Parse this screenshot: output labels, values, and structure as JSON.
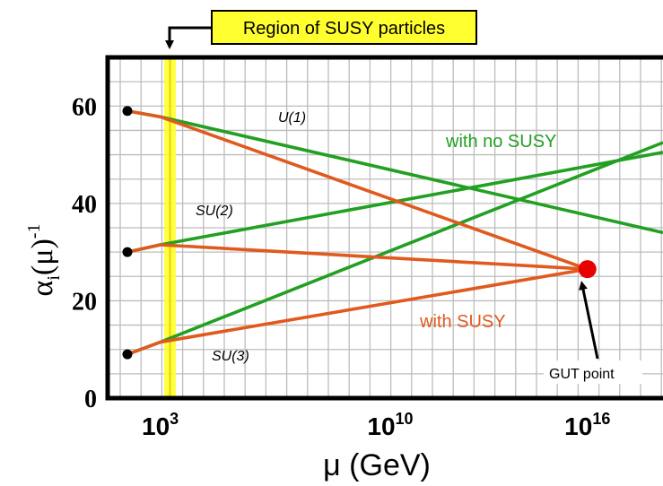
{
  "chart_data": {
    "type": "line",
    "title": "",
    "xlabel": "μ (GeV)",
    "ylabel_main": "α",
    "ylabel_sub": "i",
    "ylabel_rest": "(μ)",
    "ylabel_sup": "-1",
    "x_scale": "log10",
    "xlim_log10": [
      1.4,
      18.3
    ],
    "ylim": [
      0,
      70
    ],
    "grid": true,
    "y_ticks": [
      {
        "value": 0,
        "label": "0"
      },
      {
        "value": 20,
        "label": "20"
      },
      {
        "value": 40,
        "label": "40"
      },
      {
        "value": 60,
        "label": "60"
      }
    ],
    "x_ticks": [
      {
        "log10": 3,
        "base": "10",
        "exp": "3"
      },
      {
        "log10": 10,
        "base": "10",
        "exp": "10"
      },
      {
        "log10": 16,
        "base": "10",
        "exp": "16"
      }
    ],
    "series": [
      {
        "group": "with no SUSY",
        "color": "#22a022",
        "lines": [
          {
            "coupling": "U(1)",
            "points": [
              [
                2.0,
                59
              ],
              [
                3.0,
                57.8
              ],
              [
                18.3,
                34
              ]
            ]
          },
          {
            "coupling": "SU(2)",
            "points": [
              [
                2.0,
                30
              ],
              [
                3.0,
                31.5
              ],
              [
                18.3,
                50.5
              ]
            ]
          },
          {
            "coupling": "SU(3)",
            "points": [
              [
                2.0,
                9
              ],
              [
                3.0,
                11.5
              ],
              [
                18.3,
                52.5
              ]
            ]
          }
        ]
      },
      {
        "group": "with SUSY",
        "color": "#e05a1e",
        "lines": [
          {
            "coupling": "U(1)",
            "points": [
              [
                2.0,
                59
              ],
              [
                3.0,
                57.8
              ],
              [
                16,
                26.5
              ]
            ]
          },
          {
            "coupling": "SU(2)",
            "points": [
              [
                2.0,
                30
              ],
              [
                3.0,
                31.5
              ],
              [
                16,
                26.5
              ]
            ]
          },
          {
            "coupling": "SU(3)",
            "points": [
              [
                2.0,
                9
              ],
              [
                3.0,
                11.5
              ],
              [
                16,
                26.5
              ]
            ]
          }
        ]
      }
    ],
    "start_points": [
      [
        2.0,
        59
      ],
      [
        2.0,
        30
      ],
      [
        2.0,
        9
      ]
    ],
    "gut_point": {
      "log10": 16,
      "value": 26.5,
      "color": "#e80000"
    },
    "susy_region": {
      "log10": 3,
      "color": "#ffff30"
    },
    "annotations": {
      "susy_region_label": "Region of SUSY particles",
      "u1": "U(1)",
      "su2": "SU(2)",
      "su3": "SU(3)",
      "no_susy": "with no SUSY",
      "with_susy": "with SUSY",
      "gut": "GUT point"
    }
  }
}
